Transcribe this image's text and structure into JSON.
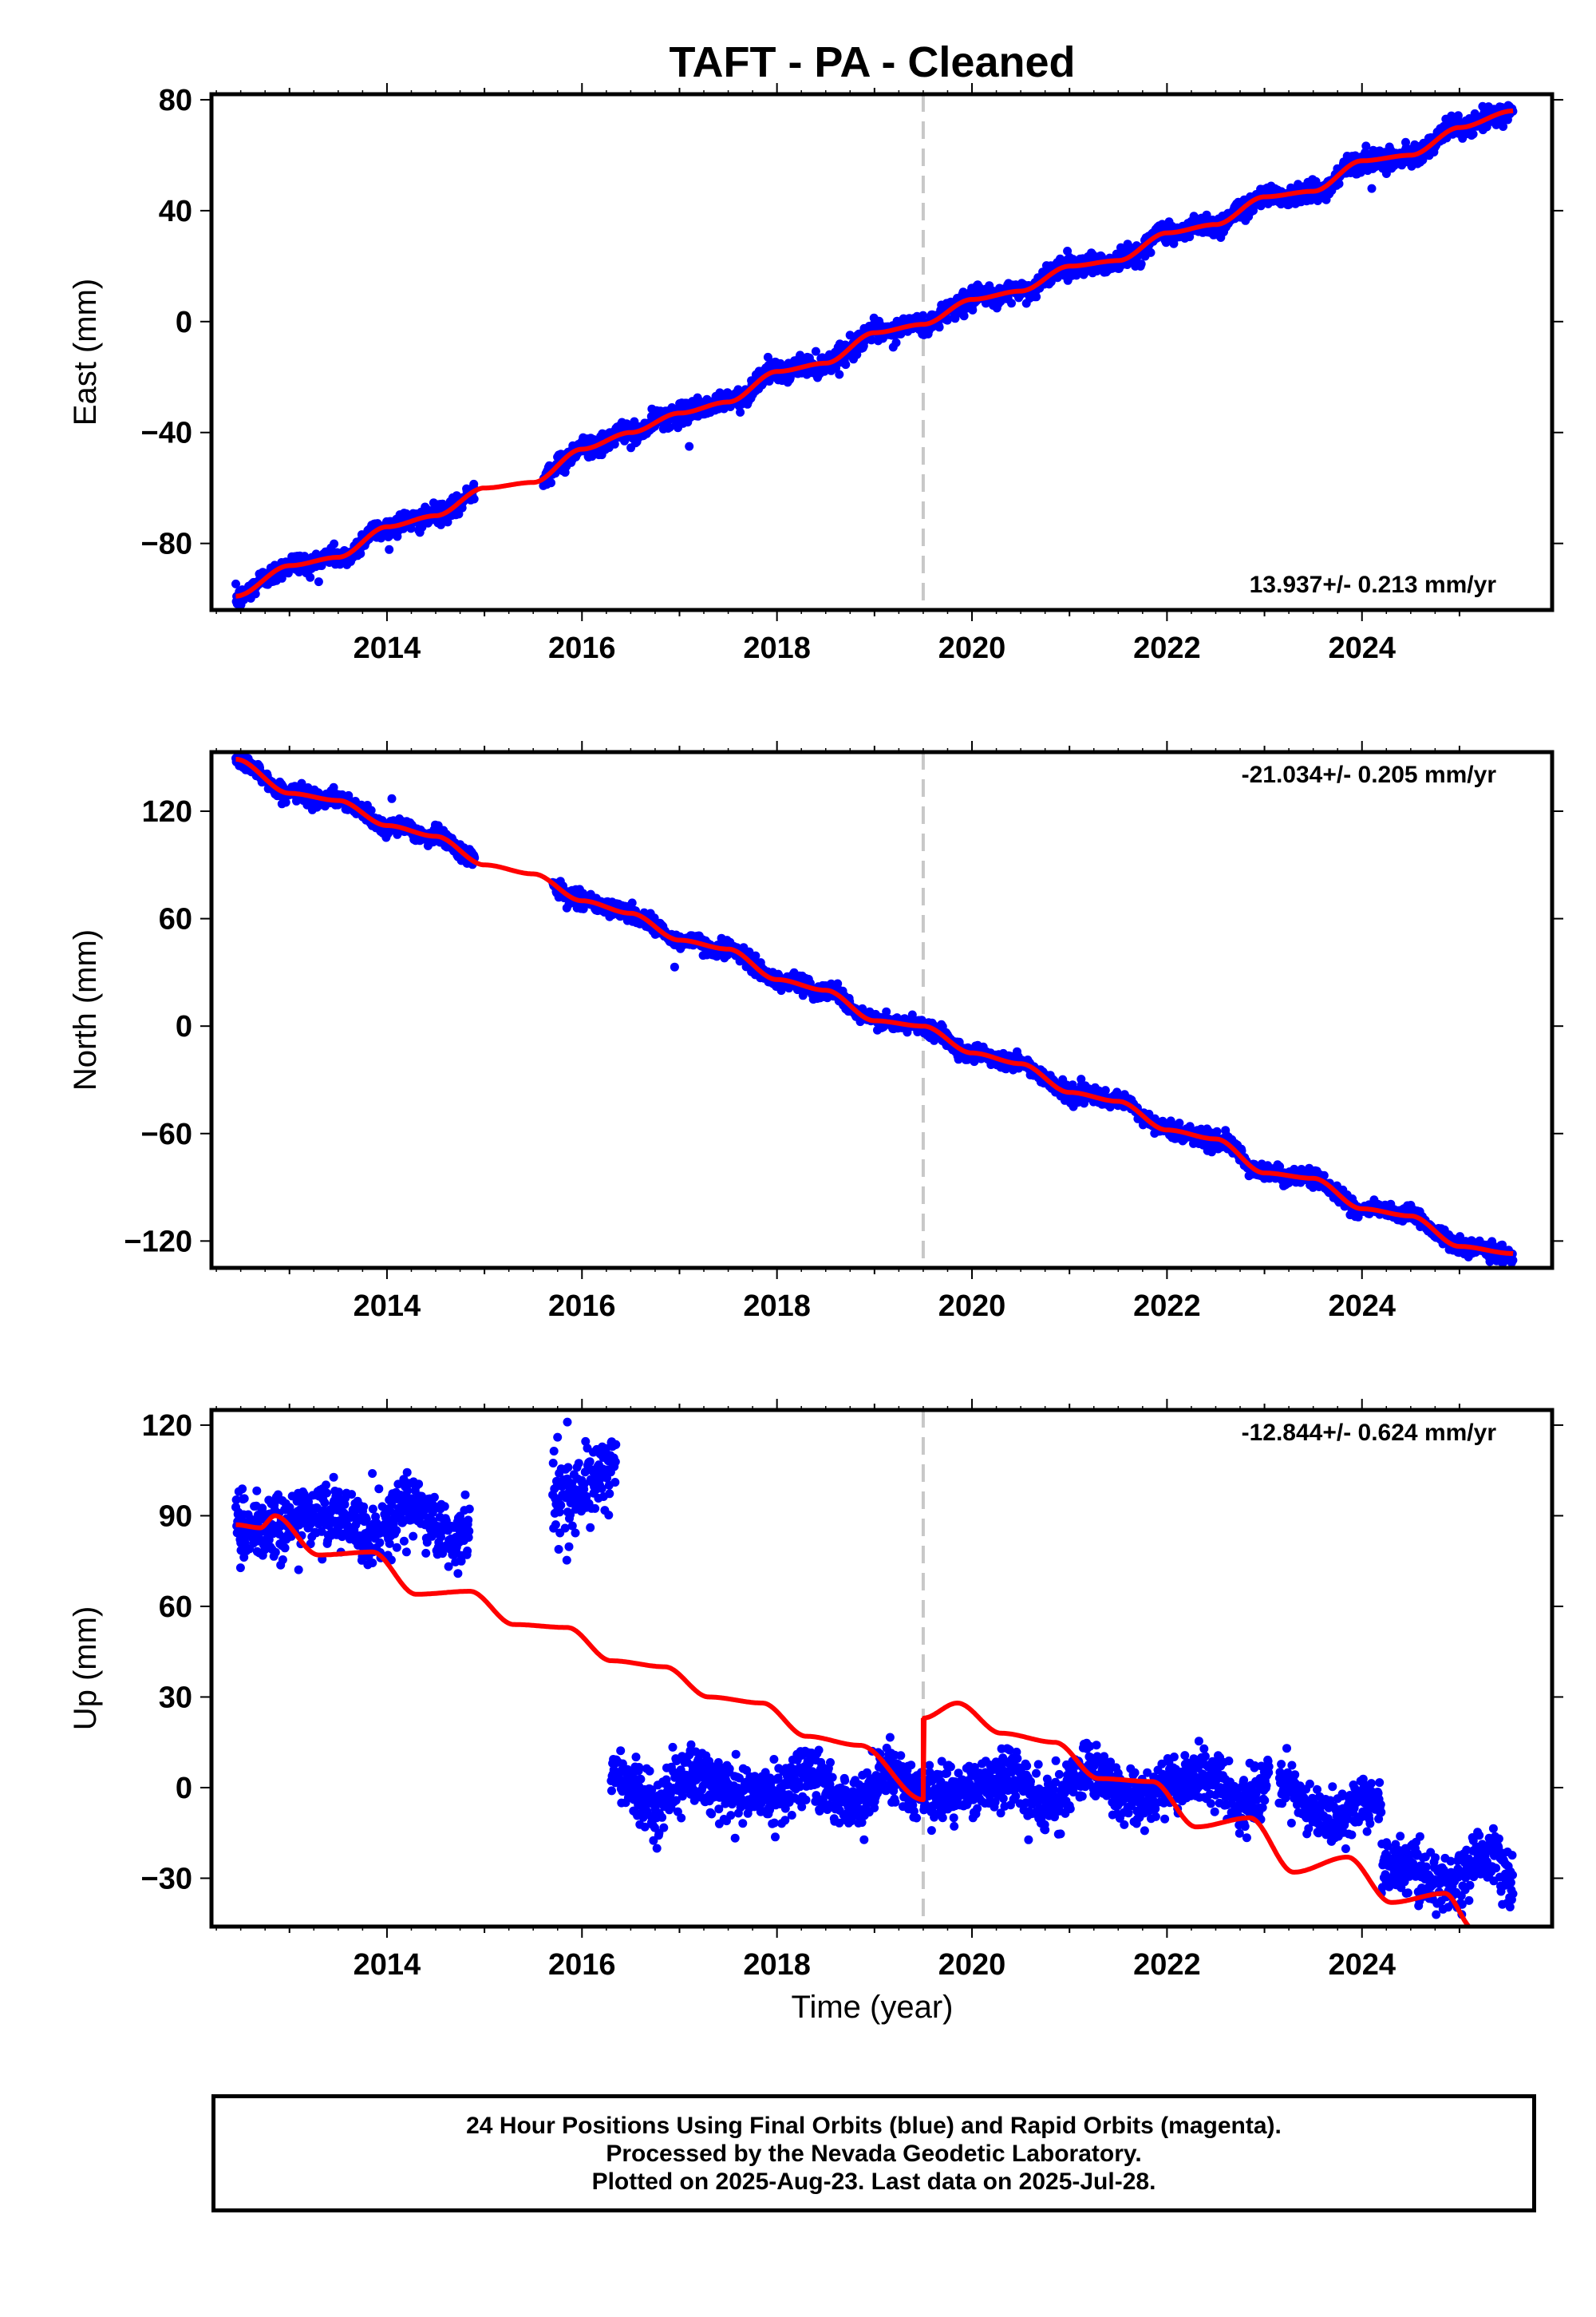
{
  "title": "TAFT  - PA - Cleaned",
  "xlabel": "Time (year)",
  "colors": {
    "final_orbits": "#0000ff",
    "model": "#ff0000",
    "marker_line": "#c8c8c8",
    "frame": "#000000"
  },
  "chart_data": [
    {
      "type": "scatter",
      "name": "east",
      "ylabel": "East (mm)",
      "xlim": [
        2012.2,
        2025.95
      ],
      "ylim": [
        -104,
        82
      ],
      "x_ticks": [
        2014,
        2016,
        2018,
        2020,
        2022,
        2024
      ],
      "y_ticks": [
        -80,
        -40,
        0,
        40,
        80
      ],
      "vertical_marker_x": 2019.5,
      "rate_label": "13.937+/- 0.213 mm/yr",
      "data_gap": [
        2014.9,
        2015.6
      ],
      "model_breakpoints": [
        [
          2012.45,
          -99
        ],
        [
          2013.0,
          -88
        ],
        [
          2013.5,
          -85
        ],
        [
          2014.0,
          -74
        ],
        [
          2014.5,
          -70
        ],
        [
          2015.0,
          -60
        ],
        [
          2015.5,
          -58
        ],
        [
          2016.0,
          -46
        ],
        [
          2016.5,
          -40
        ],
        [
          2017.0,
          -33
        ],
        [
          2017.5,
          -29
        ],
        [
          2018.0,
          -18
        ],
        [
          2018.5,
          -15
        ],
        [
          2019.0,
          -4
        ],
        [
          2019.5,
          -1
        ],
        [
          2020.0,
          8
        ],
        [
          2020.5,
          11
        ],
        [
          2021.0,
          20
        ],
        [
          2021.5,
          22
        ],
        [
          2022.0,
          32
        ],
        [
          2022.5,
          35
        ],
        [
          2023.0,
          45
        ],
        [
          2023.5,
          47
        ],
        [
          2024.0,
          58
        ],
        [
          2024.5,
          60
        ],
        [
          2025.0,
          70
        ],
        [
          2025.55,
          76
        ]
      ],
      "scatter_noise_mm": 1.8,
      "outliers": [
        [
          2017.1,
          -45
        ],
        [
          2024.1,
          48
        ]
      ]
    },
    {
      "type": "scatter",
      "name": "north",
      "ylabel": "North (mm)",
      "xlim": [
        2012.2,
        2025.95
      ],
      "ylim": [
        -135,
        153
      ],
      "x_ticks": [
        2014,
        2016,
        2018,
        2020,
        2022,
        2024
      ],
      "y_ticks": [
        -120,
        -60,
        0,
        60,
        120
      ],
      "vertical_marker_x": 2019.5,
      "rate_label": "-21.034+/- 0.205 mm/yr",
      "data_gap": [
        2014.9,
        2015.7
      ],
      "model_breakpoints": [
        [
          2012.45,
          149
        ],
        [
          2013.0,
          130
        ],
        [
          2013.5,
          126
        ],
        [
          2014.0,
          112
        ],
        [
          2014.5,
          106
        ],
        [
          2015.0,
          90
        ],
        [
          2015.5,
          85
        ],
        [
          2016.0,
          70
        ],
        [
          2016.5,
          63
        ],
        [
          2017.0,
          48
        ],
        [
          2017.5,
          43
        ],
        [
          2018.0,
          26
        ],
        [
          2018.5,
          20
        ],
        [
          2019.0,
          3
        ],
        [
          2019.5,
          0
        ],
        [
          2020.0,
          -15
        ],
        [
          2020.5,
          -21
        ],
        [
          2021.0,
          -37
        ],
        [
          2021.5,
          -42
        ],
        [
          2022.0,
          -58
        ],
        [
          2022.5,
          -63
        ],
        [
          2023.0,
          -82
        ],
        [
          2023.5,
          -85
        ],
        [
          2024.0,
          -102
        ],
        [
          2024.5,
          -106
        ],
        [
          2025.0,
          -123
        ],
        [
          2025.55,
          -127
        ]
      ],
      "scatter_noise_mm": 2.2,
      "outliers": [
        [
          2014.05,
          127
        ],
        [
          2016.95,
          33
        ]
      ]
    },
    {
      "type": "scatter",
      "name": "up",
      "ylabel": "Up (mm)",
      "xlim": [
        2012.2,
        2025.95
      ],
      "ylim": [
        -46,
        125
      ],
      "x_ticks": [
        2014,
        2016,
        2018,
        2020,
        2022,
        2024
      ],
      "y_ticks": [
        -30,
        0,
        30,
        60,
        90,
        120
      ],
      "vertical_marker_x": 2019.5,
      "rate_label": "-12.844+/- 0.624 mm/yr",
      "data_segments": [
        {
          "x": [
            2012.45,
            2014.85
          ],
          "level": 88,
          "noise": 5
        },
        {
          "x": [
            2015.7,
            2016.35
          ],
          "level": 100,
          "noise": 6
        },
        {
          "x": [
            2016.3,
            2023.05
          ],
          "level": 0,
          "noise": 4.5
        },
        {
          "x": [
            2023.15,
            2024.2
          ],
          "level": -6,
          "noise": 4
        },
        {
          "x": [
            2024.2,
            2025.55
          ],
          "level": -28,
          "noise": 5
        }
      ],
      "model_breakpoints": [
        [
          2012.45,
          87
        ],
        [
          2012.7,
          86
        ],
        [
          2012.85,
          90
        ],
        [
          2013.3,
          77
        ],
        [
          2013.85,
          78
        ],
        [
          2014.3,
          64
        ],
        [
          2014.85,
          65
        ],
        [
          2015.3,
          54
        ],
        [
          2015.85,
          53
        ],
        [
          2016.3,
          42
        ],
        [
          2016.85,
          40
        ],
        [
          2017.3,
          30
        ],
        [
          2017.85,
          28
        ],
        [
          2018.3,
          17
        ],
        [
          2018.85,
          14
        ],
        [
          2019.5,
          -4
        ],
        [
          2019.5,
          23
        ],
        [
          2019.85,
          28
        ],
        [
          2020.3,
          18
        ],
        [
          2020.85,
          15
        ],
        [
          2021.3,
          3
        ],
        [
          2021.85,
          2
        ],
        [
          2022.3,
          -13
        ],
        [
          2022.85,
          -10
        ],
        [
          2023.3,
          -28
        ],
        [
          2023.85,
          -23
        ],
        [
          2024.3,
          -38
        ],
        [
          2024.85,
          -35
        ],
        [
          2025.15,
          -47
        ]
      ]
    }
  ],
  "footer": {
    "line1": "24 Hour Positions Using Final Orbits (blue) and Rapid Orbits (magenta).",
    "line2": "Processed by the Nevada Geodetic Laboratory.",
    "line3": "Plotted on 2025-Aug-23. Last data on 2025-Jul-28."
  }
}
